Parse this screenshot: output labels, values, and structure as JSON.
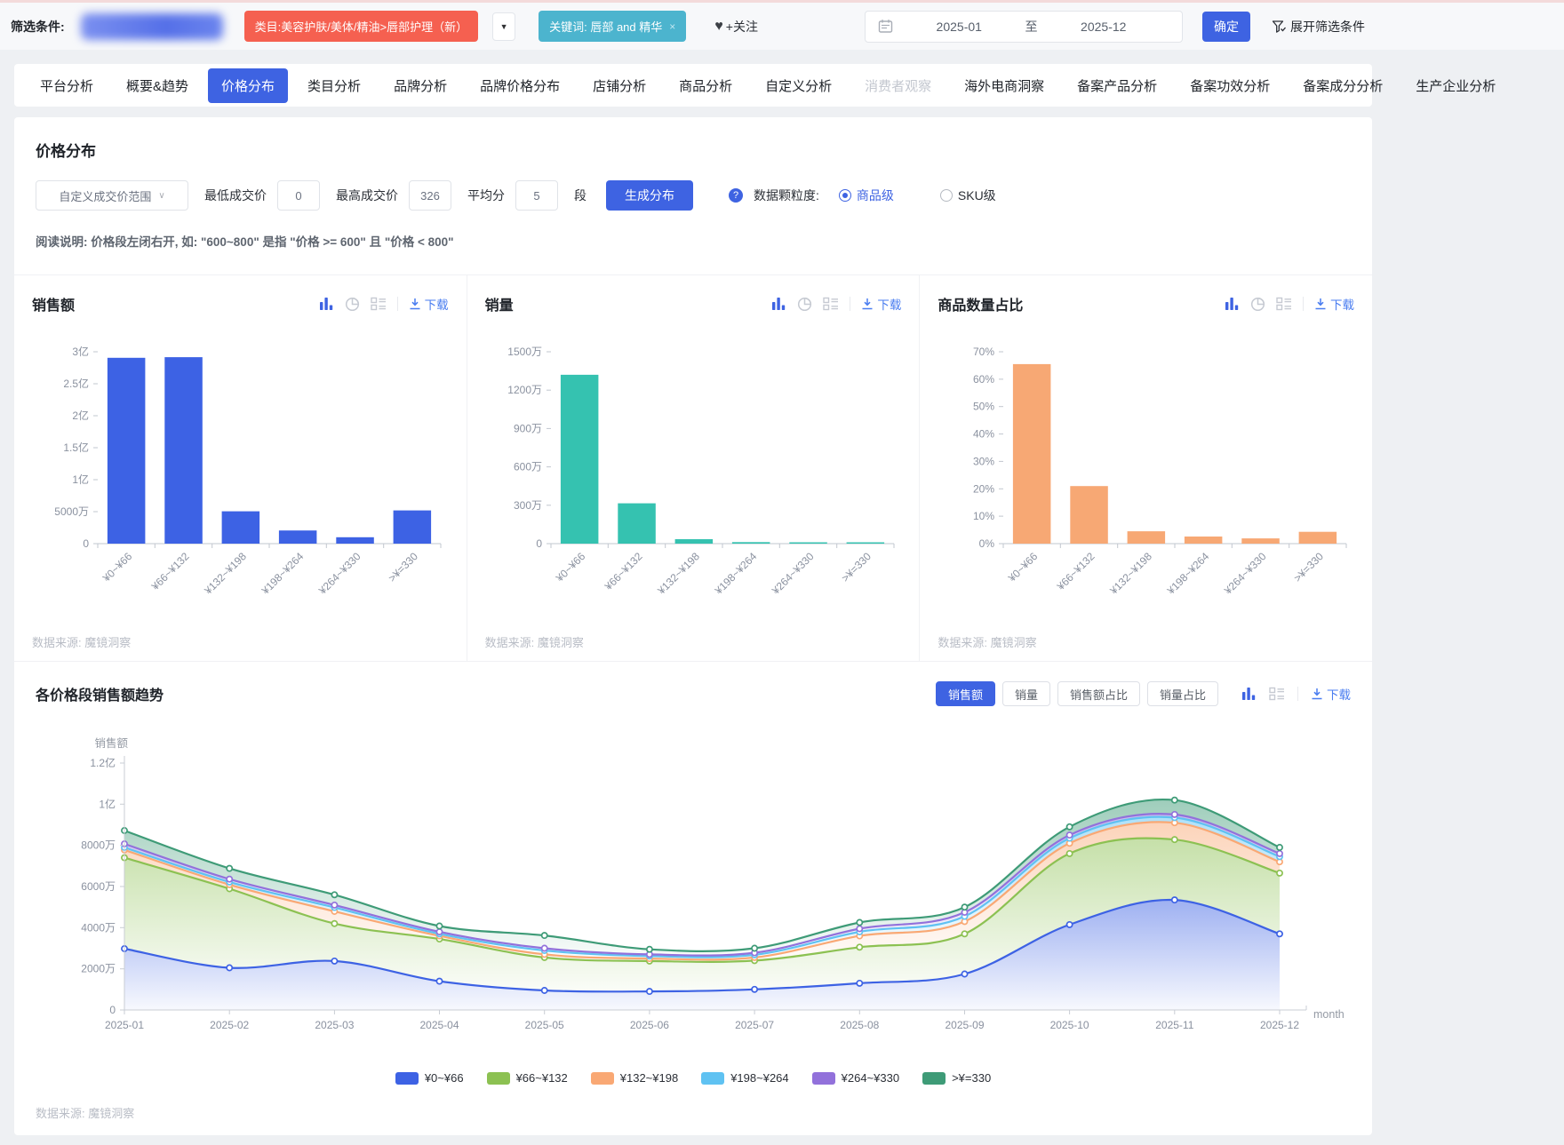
{
  "topbar": {
    "filter_label": "筛选条件:",
    "category_tag": "类目:美容护肤/美体/精油>唇部护理（新）",
    "dropdown_caret": "▼",
    "keyword_tag": "关键词: 唇部 and 精华",
    "keyword_close": "×",
    "heart": "♥",
    "follow_label": "+关注",
    "date_start": "2025-01",
    "date_sep": "至",
    "date_end": "2025-12",
    "confirm_label": "确定",
    "expand_label": "展开筛选条件"
  },
  "tabs": {
    "items": [
      "平台分析",
      "概要&趋势",
      "价格分布",
      "类目分析",
      "品牌分析",
      "品牌价格分布",
      "店铺分析",
      "商品分析",
      "自定义分析",
      "消费者观察",
      "海外电商洞察",
      "备案产品分析",
      "备案功效分析",
      "备案成分分析",
      "生产企业分析"
    ],
    "active_index": 2,
    "disabled_index": 9
  },
  "price_panel": {
    "title": "价格分布",
    "range_select": "自定义成交价范围",
    "min_label": "最低成交价",
    "min_value": "0",
    "max_label": "最高成交价",
    "max_value": "326",
    "avg_label": "平均分",
    "avg_value": "5",
    "seg_label": "段",
    "generate_label": "生成分布",
    "granularity_label": "数据颗粒度:",
    "granularity_options": [
      "商品级",
      "SKU级"
    ],
    "granularity_selected": 0,
    "note": "阅读说明: 价格段左闭右开, 如: \"600~800\" 是指 \"价格 >= 600\" 且 \"价格 < 800\""
  },
  "labels": {
    "download": "下载",
    "datasource": "数据来源: 魔镜洞察"
  },
  "trend": {
    "buttons": [
      "销售额",
      "销量",
      "销售额占比",
      "销量占比"
    ],
    "active_button_index": 0
  },
  "colors": {
    "primary": "#3E63E2",
    "tag_red": "#F56050",
    "tag_teal": "#4CB4CE",
    "badge_red": "#F53F3F",
    "icon_gray": "#C6CAD2"
  },
  "chart_data": [
    {
      "type": "bar",
      "title": "销售额",
      "color": "#3D62E4",
      "categories": [
        "¥0~¥66",
        "¥66~¥132",
        "¥132~¥198",
        "¥198~¥264",
        "¥264~¥330",
        ">¥=330"
      ],
      "values": [
        29050,
        29150,
        5050,
        2050,
        1000,
        5200
      ],
      "unit": "万元",
      "ymax": 30000,
      "yticks": [
        {
          "value": 0,
          "label": "0"
        },
        {
          "value": 5000,
          "label": "5000万"
        },
        {
          "value": 10000,
          "label": "1亿"
        },
        {
          "value": 15000,
          "label": "1.5亿"
        },
        {
          "value": 20000,
          "label": "2亿"
        },
        {
          "value": 25000,
          "label": "2.5亿"
        },
        {
          "value": 30000,
          "label": "3亿"
        }
      ]
    },
    {
      "type": "bar",
      "title": "销量",
      "color": "#35C2B0",
      "categories": [
        "¥0~¥66",
        "¥66~¥132",
        "¥132~¥198",
        "¥198~¥264",
        "¥264~¥330",
        ">¥=330"
      ],
      "values": [
        1320,
        315,
        35,
        12,
        6,
        5
      ],
      "unit": "万件",
      "ymax": 1500,
      "yticks": [
        {
          "value": 0,
          "label": "0"
        },
        {
          "value": 300,
          "label": "300万"
        },
        {
          "value": 600,
          "label": "600万"
        },
        {
          "value": 900,
          "label": "900万"
        },
        {
          "value": 1200,
          "label": "1200万"
        },
        {
          "value": 1500,
          "label": "1500万"
        }
      ]
    },
    {
      "type": "bar",
      "title": "商品数量占比",
      "color": "#F7A874",
      "categories": [
        "¥0~¥66",
        "¥66~¥132",
        "¥132~¥198",
        "¥198~¥264",
        "¥264~¥330",
        ">¥=330"
      ],
      "values": [
        65.5,
        21,
        4.5,
        2.6,
        1.9,
        4.3
      ],
      "unit": "%",
      "ymax": 70,
      "yticks": [
        {
          "value": 0,
          "label": "0%"
        },
        {
          "value": 10,
          "label": "10%"
        },
        {
          "value": 20,
          "label": "20%"
        },
        {
          "value": 30,
          "label": "30%"
        },
        {
          "value": 40,
          "label": "40%"
        },
        {
          "value": 50,
          "label": "50%"
        },
        {
          "value": 60,
          "label": "60%"
        },
        {
          "value": 70,
          "label": "70%"
        }
      ]
    },
    {
      "type": "area",
      "stacked": true,
      "title": "各价格段销售额趋势",
      "ylabel": "销售额",
      "xlabel": "month",
      "unit": "万元",
      "ymax": 12000,
      "yticks": [
        {
          "value": 0,
          "label": "0"
        },
        {
          "value": 2000,
          "label": "2000万"
        },
        {
          "value": 4000,
          "label": "4000万"
        },
        {
          "value": 6000,
          "label": "6000万"
        },
        {
          "value": 8000,
          "label": "8000万"
        },
        {
          "value": 10000,
          "label": "1亿"
        },
        {
          "value": 12000,
          "label": "1.2亿"
        }
      ],
      "x": [
        "2025-01",
        "2025-02",
        "2025-03",
        "2025-04",
        "2025-05",
        "2025-06",
        "2025-07",
        "2025-08",
        "2025-09",
        "2025-10",
        "2025-11",
        "2025-12"
      ],
      "series": [
        {
          "name": "¥0~¥66",
          "color": "#3D62E4",
          "values": [
            2980,
            2050,
            2380,
            1400,
            950,
            900,
            1000,
            1300,
            1750,
            4150,
            5350,
            3700
          ]
        },
        {
          "name": "¥66~¥132",
          "color": "#8CC152",
          "values": [
            4420,
            3840,
            1820,
            2050,
            1600,
            1480,
            1400,
            1750,
            1950,
            3450,
            2930,
            2950
          ]
        },
        {
          "name": "¥132~¥198",
          "color": "#F9A874",
          "values": [
            380,
            200,
            590,
            150,
            150,
            120,
            150,
            550,
            600,
            500,
            820,
            550
          ]
        },
        {
          "name": "¥198~¥264",
          "color": "#5FC2F2",
          "values": [
            120,
            130,
            190,
            100,
            190,
            120,
            130,
            200,
            250,
            250,
            250,
            250
          ]
        },
        {
          "name": "¥264~¥330",
          "color": "#9271DB",
          "values": [
            170,
            140,
            120,
            100,
            110,
            80,
            100,
            150,
            200,
            150,
            150,
            150
          ]
        },
        {
          "name": ">¥=330",
          "color": "#3E9B77",
          "values": [
            650,
            520,
            500,
            280,
            620,
            250,
            220,
            300,
            250,
            400,
            700,
            300
          ]
        }
      ]
    }
  ]
}
